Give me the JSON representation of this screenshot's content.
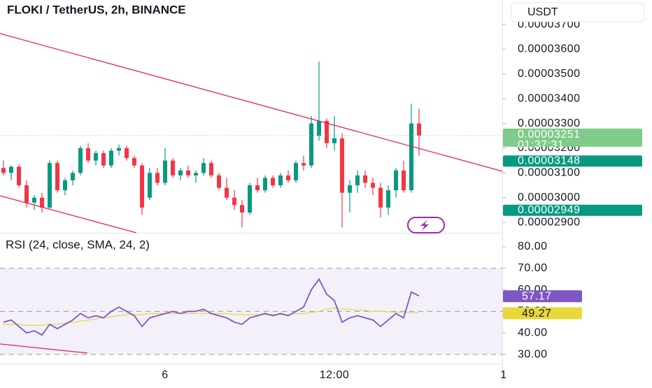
{
  "chart_data": [
    {
      "type": "candlestick",
      "title": "FLOKI / TetherUS, 2h, BINANCE",
      "currency_button": "USDT",
      "categories": [
        null,
        null,
        null,
        null,
        null,
        null,
        null,
        null,
        null,
        null,
        null,
        null,
        null,
        null,
        null,
        null,
        null,
        null,
        null,
        null,
        null,
        "6",
        null,
        null,
        null,
        null,
        null,
        null,
        null,
        null,
        null,
        null,
        null,
        null,
        null,
        null,
        null,
        null,
        null,
        null,
        null,
        null,
        null,
        "12:00",
        null,
        null,
        null,
        null,
        null,
        null,
        null,
        null,
        null,
        null,
        null,
        null,
        null,
        null,
        null,
        null,
        null,
        null,
        null,
        null,
        null,
        "1"
      ],
      "open": [
        3.12e-05,
        3.1e-05,
        3.125e-05,
        3.05e-05,
        2.98e-05,
        3e-05,
        2.96e-05,
        3.14e-05,
        3.03e-05,
        3.07e-05,
        3.1e-05,
        3.2e-05,
        3.15e-05,
        3.18e-05,
        3.13e-05,
        3.19e-05,
        3.2e-05,
        3.16e-05,
        3.13e-05,
        3e-05,
        3.1e-05,
        3.06e-05,
        3.15e-05,
        3.09e-05,
        3.11e-05,
        3.09e-05,
        3.1e-05,
        3.14e-05,
        3.09e-05,
        3.04e-05,
        3e-05,
        2.97e-05,
        2.94e-05,
        3.05e-05,
        3.03e-05,
        3.08e-05,
        3.05e-05,
        3.09e-05,
        3.07e-05,
        3.14e-05,
        3.13e-05,
        3.25e-05,
        3.31e-05,
        3.22e-05,
        3.24e-05,
        3.02e-05,
        3.05e-05,
        3.09e-05,
        3.06e-05,
        3.04e-05,
        2.96e-05,
        3.03e-05,
        3.11e-05,
        3.03e-05,
        3.3e-05,
        null,
        null,
        null,
        null,
        null,
        null,
        null,
        null,
        null,
        null,
        null
      ],
      "high": [
        3.15e-05,
        3.13e-05,
        3.135e-05,
        3.07e-05,
        3.01e-05,
        3.02e-05,
        3.15e-05,
        3.15e-05,
        3.08e-05,
        3.11e-05,
        3.21e-05,
        3.22e-05,
        3.19e-05,
        3.19e-05,
        3.2e-05,
        3.215e-05,
        3.21e-05,
        3.17e-05,
        3.14e-05,
        3.12e-05,
        3.12e-05,
        3.2e-05,
        3.16e-05,
        3.12e-05,
        3.13e-05,
        3.11e-05,
        3.16e-05,
        3.15e-05,
        3.1e-05,
        3.08e-05,
        3.03e-05,
        2.99e-05,
        3.06e-05,
        3.08e-05,
        3.09e-05,
        3.09e-05,
        3.1e-05,
        3.11e-05,
        3.15e-05,
        3.17e-05,
        3.33e-05,
        3.55e-05,
        3.32e-05,
        3.33e-05,
        3.26e-05,
        3.07e-05,
        3.11e-05,
        3.11e-05,
        3.08e-05,
        3.06e-05,
        3.05e-05,
        3.12e-05,
        3.15e-05,
        3.38e-05,
        3.36e-05,
        null,
        null,
        null,
        null,
        null,
        null,
        null,
        null,
        null,
        null,
        null
      ],
      "low": [
        3.09e-05,
        3.07e-05,
        3.04e-05,
        2.96e-05,
        2.95e-05,
        2.94e-05,
        2.955e-05,
        3.02e-05,
        3.01e-05,
        3.05e-05,
        3.09e-05,
        3.14e-05,
        3.13e-05,
        3.12e-05,
        3.12e-05,
        3.17e-05,
        3.15e-05,
        3.12e-05,
        2.93e-05,
        2.99e-05,
        3.05e-05,
        3.05e-05,
        3.08e-05,
        3.07e-05,
        3.08e-05,
        3.06e-05,
        3.09e-05,
        3.08e-05,
        3.03e-05,
        2.99e-05,
        2.95e-05,
        2.88e-05,
        2.93e-05,
        3.02e-05,
        3.02e-05,
        3.04e-05,
        3.04e-05,
        3.06e-05,
        3.06e-05,
        3.11e-05,
        3.12e-05,
        3.23e-05,
        3.2e-05,
        3.19e-05,
        2.88e-05,
        2.94e-05,
        3.02e-05,
        3.04e-05,
        3.01e-05,
        2.92e-05,
        2.93e-05,
        3e-05,
        3.02e-05,
        3.02e-05,
        3.17e-05,
        null,
        null,
        null,
        null,
        null,
        null,
        null,
        null,
        null,
        null,
        null
      ],
      "close": [
        3.1e-05,
        3.125e-05,
        3.05e-05,
        2.98e-05,
        3e-05,
        2.96e-05,
        3.14e-05,
        3.03e-05,
        3.07e-05,
        3.1e-05,
        3.2e-05,
        3.15e-05,
        3.18e-05,
        3.13e-05,
        3.19e-05,
        3.2e-05,
        3.16e-05,
        3.13e-05,
        2.96e-05,
        3.1e-05,
        3.06e-05,
        3.15e-05,
        3.09e-05,
        3.11e-05,
        3.09e-05,
        3.1e-05,
        3.14e-05,
        3.09e-05,
        3.04e-05,
        3e-05,
        2.97e-05,
        2.94e-05,
        3.05e-05,
        3.03e-05,
        3.08e-05,
        3.05e-05,
        3.09e-05,
        3.07e-05,
        3.14e-05,
        3.13e-05,
        3.3e-05,
        3.31e-05,
        3.22e-05,
        3.24e-05,
        3.02e-05,
        3.05e-05,
        3.09e-05,
        3.06e-05,
        3.04e-05,
        2.96e-05,
        3.03e-05,
        3.11e-05,
        3.03e-05,
        3.3e-05,
        3.251e-05,
        null,
        null,
        null,
        null,
        null,
        null,
        null,
        null,
        null,
        null,
        null
      ],
      "up_color": "#089981",
      "down_color": "#f23645",
      "ylim": [
        2.858e-05,
        3.799e-05
      ],
      "yticks": [
        {
          "value": 3.7e-05,
          "label": "0.00003700"
        },
        {
          "value": 3.6e-05,
          "label": "0.00003600"
        },
        {
          "value": 3.5e-05,
          "label": "0.00003500"
        },
        {
          "value": 3.4e-05,
          "label": "0.00003400"
        },
        {
          "value": 3.3e-05,
          "label": "0.00003300"
        },
        {
          "value": 3.2e-05,
          "label": "0.00003200"
        },
        {
          "value": 3.1e-05,
          "label": "0.00003100"
        },
        {
          "value": 3e-05,
          "label": "0.00003000"
        },
        {
          "value": 2.9e-05,
          "label": "0.00002900"
        }
      ],
      "last_price_color": "#7fcb89",
      "countdown": "01:37:31",
      "price_tags": [
        3.148e-05,
        2.949e-05
      ],
      "price_tag_color": "#089981"
    },
    {
      "type": "line",
      "title": "RSI (24, close, SMA, 24, 2)",
      "series": [
        {
          "color": "#7e57c2",
          "values": [
            45,
            46,
            43,
            40,
            41,
            39,
            44,
            42,
            44,
            46,
            49,
            47,
            48,
            47,
            50,
            52,
            50,
            48,
            43,
            47,
            48,
            49,
            50,
            49,
            50,
            50,
            51,
            49,
            48,
            47,
            45,
            44,
            47,
            48,
            49,
            48,
            49,
            48,
            50,
            52,
            60,
            65,
            58,
            55,
            45,
            47,
            48,
            47,
            46,
            43,
            46,
            49,
            47,
            59,
            57.17,
            null,
            null,
            null,
            null,
            null,
            null,
            null,
            null,
            null,
            null,
            null
          ]
        },
        {
          "color": "#e8d83a",
          "values": [
            44,
            44,
            44,
            43.5,
            43.5,
            43.5,
            44,
            44,
            44.5,
            45,
            45.5,
            46,
            46.5,
            47,
            47.5,
            48,
            48.5,
            48.5,
            48.5,
            49,
            49,
            49,
            49,
            49,
            49,
            49,
            49,
            49,
            49,
            49,
            48.5,
            48.5,
            48.5,
            48.5,
            48.5,
            48.5,
            48.5,
            48.5,
            49,
            49,
            49.5,
            50,
            51,
            51.5,
            51,
            51,
            50.5,
            50.5,
            50,
            50,
            49.8,
            49.6,
            49.5,
            49.4,
            49.27,
            null,
            null,
            null,
            null,
            null,
            null,
            null,
            null,
            null,
            null,
            null
          ]
        }
      ],
      "ylim": [
        25.8,
        84.2
      ],
      "yticks": [
        {
          "value": 80,
          "label": "80.00"
        },
        {
          "value": 70,
          "label": "70.00"
        },
        {
          "value": 60,
          "label": "60.00"
        },
        {
          "value": 50,
          "label": "50.00"
        },
        {
          "value": 40,
          "label": "40.00"
        },
        {
          "value": 30,
          "label": "30.00"
        }
      ],
      "band": [
        30,
        70
      ],
      "band_color": "#7e57c2",
      "dashed_levels": [
        70,
        50,
        30
      ]
    }
  ]
}
